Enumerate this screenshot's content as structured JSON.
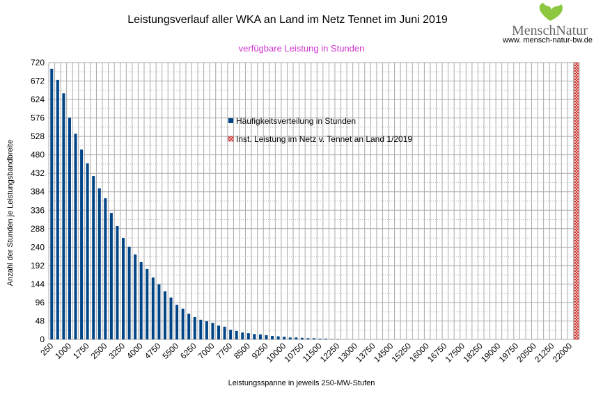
{
  "chart_data": {
    "type": "bar",
    "title": "Leistungsverlauf aller WKA an Land im Netz Tennet im Juni 2019",
    "subtitle": "verfügbare Leistung in Stunden",
    "xlabel": "Leistungsspanne in jeweils 250-MW-Stufen",
    "ylabel": "Anzahl der Stunden je Leistungsbandbreite",
    "ylim": [
      0,
      720
    ],
    "yticks": [
      0,
      48,
      96,
      144,
      192,
      240,
      288,
      336,
      384,
      432,
      480,
      528,
      576,
      624,
      672,
      720
    ],
    "grid": true,
    "legend_position": "center",
    "category_start": 250,
    "category_step": 250,
    "category_end": 22250,
    "series": [
      {
        "name": "Häufigkeitsverteilung in Stunden",
        "color": "#004586",
        "values": [
          704,
          675,
          640,
          577,
          535,
          494,
          458,
          425,
          393,
          367,
          329,
          295,
          264,
          241,
          221,
          201,
          183,
          161,
          143,
          125,
          109,
          90,
          80,
          67,
          58,
          51,
          47,
          43,
          36,
          33,
          25,
          22,
          18,
          16,
          14,
          13,
          11,
          9,
          8,
          7,
          5,
          5,
          4,
          3,
          3,
          2,
          2,
          1,
          1,
          0,
          0,
          0,
          0,
          0,
          0,
          0,
          0,
          0,
          0,
          0,
          0,
          0,
          0,
          0,
          0,
          0,
          0,
          0,
          0,
          0,
          0,
          0,
          0,
          0,
          0,
          0,
          0,
          0,
          0,
          0,
          0,
          0,
          0,
          0,
          0,
          0,
          0,
          0,
          0
        ]
      },
      {
        "name": "Inst. Leistung im Netz v. Tennet an Land 1/2019",
        "color": "#c9211e",
        "pattern": "hatched",
        "category": 22250,
        "value": 720
      }
    ]
  },
  "logo": {
    "text": "MenschNatur",
    "url": "www. mensch-natur-bw.de"
  }
}
